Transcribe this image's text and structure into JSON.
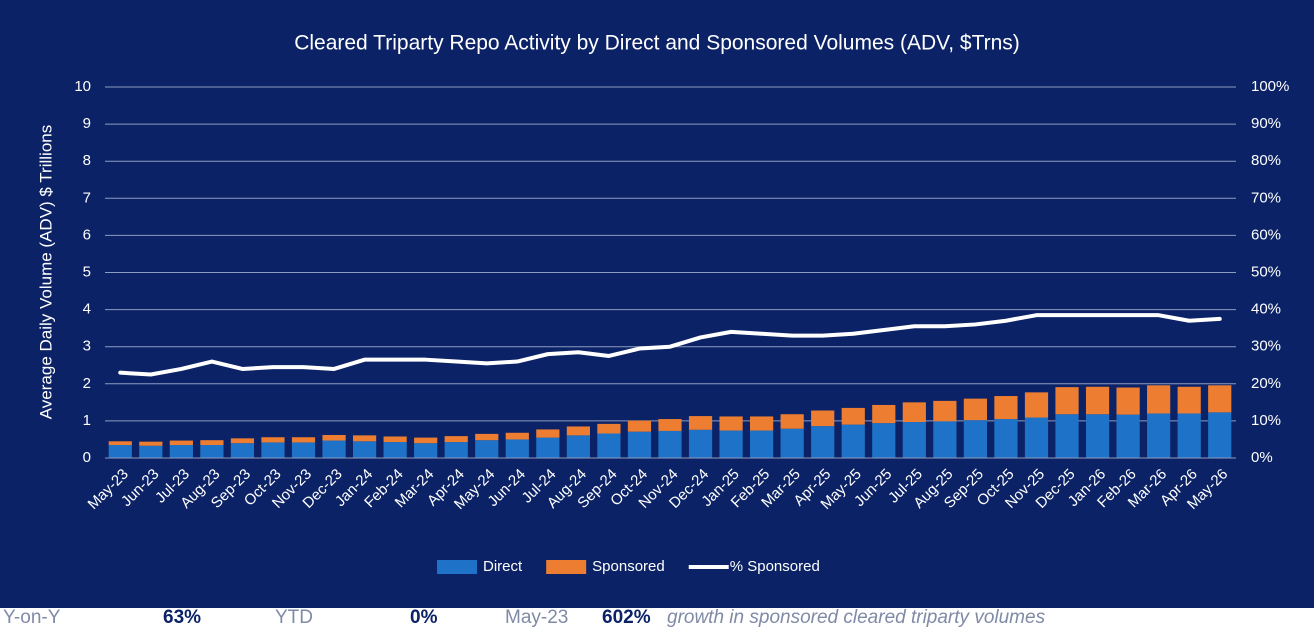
{
  "chart_data": {
    "type": "stacked_bar_line",
    "title": "Cleared Triparty Repo Activity by Direct and Sponsored Volumes (ADV, $Trns)",
    "y_label": "Average Daily Volume (ADV) $ Trillions",
    "categories": [
      "May-23",
      "Jun-23",
      "Jul-23",
      "Aug-23",
      "Sep-23",
      "Oct-23",
      "Nov-23",
      "Dec-23",
      "Jan-24",
      "Feb-24",
      "Mar-24",
      "Apr-24",
      "May-24",
      "Jun-24",
      "Jul-24",
      "Aug-24",
      "Sep-24",
      "Oct-24",
      "Nov-24",
      "Dec-24",
      "Jan-25",
      "Feb-25",
      "Mar-25",
      "Apr-25",
      "May-25",
      "Jun-25",
      "Jul-25",
      "Aug-25",
      "Sep-25",
      "Oct-25",
      "Nov-25",
      "Dec-25",
      "Jan-26",
      "Feb-26",
      "Mar-26",
      "Apr-26",
      "May-26"
    ],
    "series": [
      {
        "name": "Direct",
        "color": "#1e73c8",
        "values": [
          0.35,
          0.33,
          0.35,
          0.35,
          0.4,
          0.42,
          0.42,
          0.47,
          0.45,
          0.43,
          0.4,
          0.43,
          0.48,
          0.5,
          0.55,
          0.61,
          0.66,
          0.71,
          0.73,
          0.76,
          0.74,
          0.74,
          0.79,
          0.86,
          0.9,
          0.94,
          0.97,
          0.99,
          1.02,
          1.05,
          1.09,
          1.18,
          1.18,
          1.17,
          1.2,
          1.2,
          1.23
        ]
      },
      {
        "name": "Sponsored",
        "color": "#ed7d31",
        "values": [
          0.1,
          0.11,
          0.12,
          0.13,
          0.13,
          0.14,
          0.14,
          0.15,
          0.16,
          0.15,
          0.15,
          0.16,
          0.17,
          0.18,
          0.22,
          0.24,
          0.26,
          0.3,
          0.32,
          0.37,
          0.38,
          0.38,
          0.39,
          0.42,
          0.45,
          0.49,
          0.53,
          0.55,
          0.58,
          0.62,
          0.68,
          0.73,
          0.74,
          0.73,
          0.76,
          0.72,
          0.73
        ]
      },
      {
        "name": "% Sponsored",
        "color": "#ffffff",
        "axis": "y2",
        "values": [
          23,
          22.5,
          24,
          26,
          24,
          24.5,
          24.5,
          24,
          26.5,
          26.5,
          26.5,
          26,
          25.5,
          26,
          28,
          28.5,
          27.5,
          29.5,
          30,
          32.5,
          34,
          33.5,
          33,
          33,
          33.5,
          34.5,
          35.5,
          35.5,
          36,
          37,
          38.5,
          38.5,
          38.5,
          38.5,
          38.5,
          37,
          37.5
        ]
      }
    ],
    "ylim": [
      0,
      10
    ],
    "yticks": [
      0,
      1,
      2,
      3,
      4,
      5,
      6,
      7,
      8,
      9,
      10
    ],
    "y2lim": [
      0,
      100
    ],
    "y2ticks": [
      {
        "value": 0,
        "label": "0%"
      },
      {
        "value": 10,
        "label": "10%"
      },
      {
        "value": 20,
        "label": "20%"
      },
      {
        "value": 30,
        "label": "30%"
      },
      {
        "value": 40,
        "label": "40%"
      },
      {
        "value": 50,
        "label": "50%"
      },
      {
        "value": 60,
        "label": "60%"
      },
      {
        "value": 70,
        "label": "70%"
      },
      {
        "value": 80,
        "label": "80%"
      },
      {
        "value": 90,
        "label": "90%"
      },
      {
        "value": 100,
        "label": "100%"
      }
    ],
    "grid": true,
    "legend": "bottom",
    "footer": [
      {
        "label": "Y-on-Y",
        "value": "63%"
      },
      {
        "label": "YTD",
        "value": "0%"
      },
      {
        "label": "May-23",
        "value": "602%"
      }
    ],
    "footer_note": "growth in sponsored cleared triparty volumes"
  }
}
